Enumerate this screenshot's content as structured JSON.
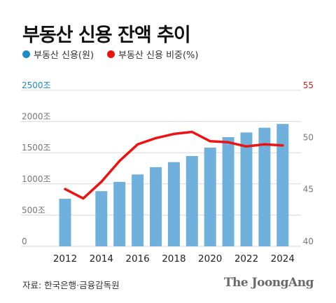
{
  "title": "부동산 신용 잔액 추이",
  "source": "자료: 한국은행·금융감독원",
  "brand": "The JoongAng",
  "colors": {
    "bar": "#6fb1dc",
    "line": "#ee1111",
    "left_axis": "#1e8ac6",
    "right_axis": "#cc2222",
    "tick": "#777777",
    "grid": "#d8d8d8"
  },
  "chart_data": {
    "type": "bar+line",
    "x": [
      2012,
      2013,
      2014,
      2015,
      2016,
      2017,
      2018,
      2019,
      2020,
      2021,
      2022,
      2023,
      2024
    ],
    "x_tick_labels": [
      "2012",
      "2014",
      "2016",
      "2018",
      "2020",
      "2022",
      "2024"
    ],
    "series": [
      {
        "name": "부동산 신용(원)",
        "type": "bar",
        "axis": "left",
        "color": "#6fb1dc",
        "values": [
          762,
          0,
          884,
          1033,
          1151,
          1268,
          1349,
          1447,
          1582,
          1749,
          1824,
          1900,
          1960
        ]
      },
      {
        "name": "부동산 신용 비중(%)",
        "type": "line",
        "axis": "right",
        "color": "#ee1111",
        "values": [
          45.5,
          44.6,
          46.2,
          48.2,
          49.8,
          50.4,
          50.8,
          51.0,
          50.1,
          50.0,
          49.6,
          49.8,
          49.7
        ]
      }
    ],
    "y_left": {
      "ticks": [
        0,
        500,
        1000,
        1500,
        2000,
        2500
      ],
      "tick_labels": [
        "0",
        "500조",
        "1000조",
        "1500조",
        "2000조",
        "2500조"
      ],
      "ylim": [
        0,
        2500
      ]
    },
    "y_right": {
      "ticks": [
        40,
        45,
        50,
        55
      ],
      "tick_labels": [
        "40",
        "45",
        "50",
        "55"
      ],
      "ylim": [
        40,
        55
      ]
    },
    "grid": true,
    "legend": "top-left"
  }
}
